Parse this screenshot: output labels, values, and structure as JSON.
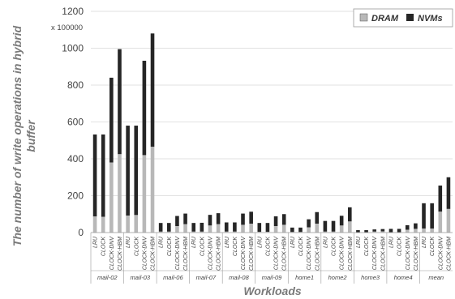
{
  "chart_data": {
    "type": "bar",
    "stacked": true,
    "ylabel": [
      "The number of write operations in hybrid",
      "buffer"
    ],
    "xlabel": "Workloads",
    "y_multiplier": "x 100000",
    "ylim": [
      0,
      1200
    ],
    "yticks": [
      0,
      200,
      400,
      600,
      800,
      1000,
      1200
    ],
    "ytick_labels": [
      "0",
      "200",
      "400",
      "600",
      "800",
      "1000",
      "1200"
    ],
    "grid": true,
    "legend": {
      "placement": "top-right",
      "entries": [
        "DRAM",
        "NVMs"
      ]
    },
    "colors": {
      "DRAM": "#b8b8b8",
      "NVMs": "#262626",
      "grid": "#d9d9d9",
      "axis": "#999999"
    },
    "groups": [
      {
        "name": "mail-02",
        "categories": [
          "LRU",
          "CLOCK",
          "CLOCK-DNV",
          "CLOCK-HBM"
        ],
        "dram": [
          87,
          85,
          380,
          425
        ],
        "nvm": [
          445,
          447,
          460,
          570
        ]
      },
      {
        "name": "mail-03",
        "categories": [
          "LRU",
          "CLOCK",
          "CLOCK-DNV",
          "CLOCK-HBM"
        ],
        "dram": [
          92,
          95,
          420,
          465
        ],
        "nvm": [
          488,
          485,
          512,
          615
        ]
      },
      {
        "name": "mail-06",
        "categories": [
          "LRU",
          "CLOCK",
          "CLOCK-DNV",
          "CLOCK-HBM"
        ],
        "dram": [
          5,
          5,
          35,
          45
        ],
        "nvm": [
          47,
          47,
          55,
          58
        ]
      },
      {
        "name": "mail-07",
        "categories": [
          "LRU",
          "CLOCK",
          "CLOCK-DNV",
          "CLOCK-HBM"
        ],
        "dram": [
          5,
          5,
          38,
          45
        ],
        "nvm": [
          47,
          48,
          58,
          60
        ]
      },
      {
        "name": "mail-08",
        "categories": [
          "LRU",
          "CLOCK",
          "CLOCK-DNV",
          "CLOCK-HBM"
        ],
        "dram": [
          5,
          5,
          42,
          48
        ],
        "nvm": [
          50,
          50,
          61,
          65
        ]
      },
      {
        "name": "mail-09",
        "categories": [
          "LRU",
          "CLOCK",
          "CLOCK-DNV",
          "CLOCK-HBM"
        ],
        "dram": [
          4,
          4,
          35,
          42
        ],
        "nvm": [
          48,
          48,
          53,
          58
        ]
      },
      {
        "name": "home1",
        "categories": [
          "LRU",
          "CLOCK",
          "CLOCK-DNV",
          "CLOCK-HBM"
        ],
        "dram": [
          3,
          3,
          28,
          48
        ],
        "nvm": [
          24,
          24,
          44,
          63
        ]
      },
      {
        "name": "home2",
        "categories": [
          "LRU",
          "CLOCK",
          "CLOCK-DNV",
          "CLOCK-HBM"
        ],
        "dram": [
          5,
          5,
          38,
          60
        ],
        "nvm": [
          58,
          58,
          53,
          77
        ]
      },
      {
        "name": "home3",
        "categories": [
          "LRU",
          "CLOCK",
          "CLOCK-DNV",
          "CLOCK-HBM"
        ],
        "dram": [
          1,
          1,
          5,
          6
        ],
        "nvm": [
          12,
          12,
          12,
          13
        ]
      },
      {
        "name": "home4",
        "categories": [
          "LRU",
          "CLOCK",
          "CLOCK-DNV",
          "CLOCK-HBM"
        ],
        "dram": [
          2,
          2,
          15,
          20
        ],
        "nvm": [
          18,
          18,
          25,
          30
        ]
      },
      {
        "name": "mean",
        "categories": [
          "LRU",
          "CLOCK",
          "CLOCK-DNV",
          "CLOCK-HBM"
        ],
        "dram": [
          22,
          22,
          113,
          128
        ],
        "nvm": [
          137,
          137,
          142,
          172
        ]
      }
    ]
  }
}
